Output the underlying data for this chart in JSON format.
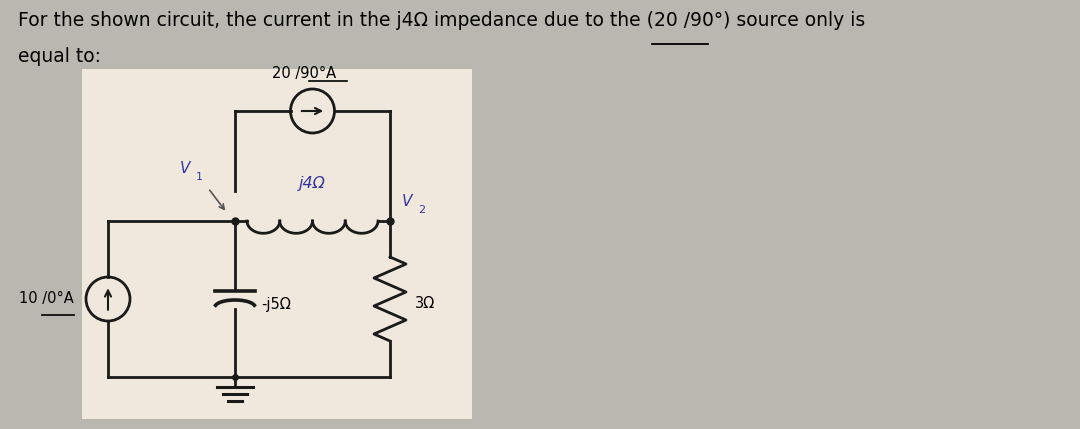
{
  "bg_color": "#b8b8b0",
  "circuit_bg": "#f0e8dc",
  "title_line1": "For the shown circuit, the current in the j4Ω impedance due to the (20 /90°) source only is",
  "title_line2": "equal to:",
  "title_fontsize": 13.5,
  "title_color": "#000000",
  "source_20_label": "20 /90°A",
  "source_10_label": "10 /0°A",
  "j4_label": "j4Ω",
  "j5_label": "-j5Ω",
  "r3_label": "3Ω",
  "v1_label": "V",
  "v2_label": "V",
  "wire_color": "#1a1a1a",
  "label_color_blue": "#3535a0",
  "lw": 2.0
}
